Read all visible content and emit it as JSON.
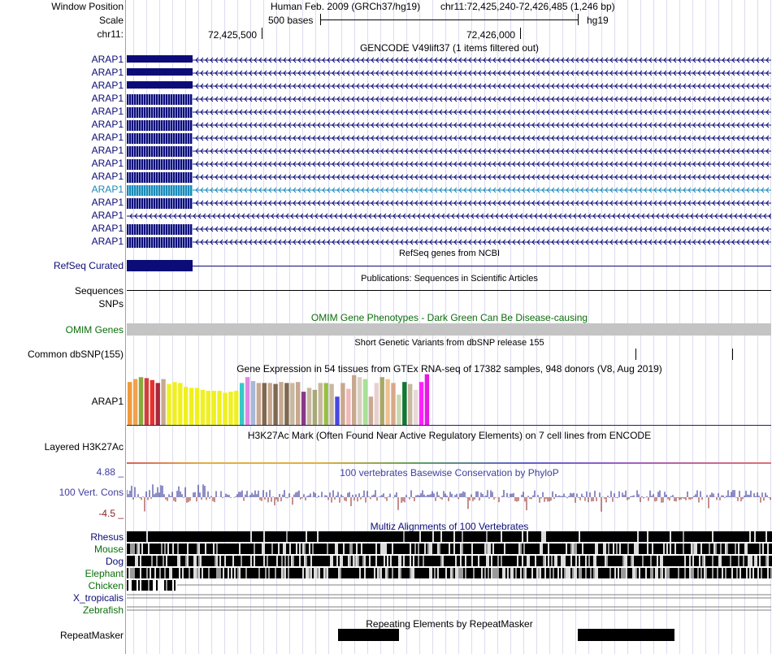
{
  "header": {
    "window_position_label": "Window Position",
    "assembly_text": "Human Feb. 2009 (GRCh37/hg19)",
    "position_text": "chr11:72,425,240-72,426,485 (1,246 bp)",
    "scale_label": "Scale",
    "scale_bar_text": "500 bases",
    "scale_db": "hg19",
    "chrom_label": "chr11:",
    "ruler_tick_1": "72,425,500",
    "ruler_tick_2": "72,426,000"
  },
  "tracks": {
    "gencode": {
      "title": "GENCODE V49lift37 (1 items filtered out)",
      "gene_label": "ARAP1",
      "colors": {
        "navy": "#0c0c78",
        "highlight": "#1a8ab8"
      }
    },
    "refseq": {
      "label": "RefSeq Curated",
      "title": "RefSeq genes from NCBI"
    },
    "sequences": {
      "label": "Sequences",
      "title": "Publications: Sequences in Scientific Articles"
    },
    "snps": {
      "label": "SNPs"
    },
    "omim": {
      "label": "OMIM Genes",
      "title": "OMIM Gene Phenotypes - Dark Green Can Be Disease-causing",
      "bar_color": "#c4c4c4"
    },
    "dbsnp": {
      "label": "Common dbSNP(155)",
      "title": "Short Genetic Variants from dbSNP release 155"
    },
    "gtex": {
      "label": "ARAP1",
      "title": "Gene Expression in 54 tissues from GTEx RNA-seq of 17382 samples, 948 donors (V8, Aug 2019)"
    },
    "h3k27ac": {
      "label": "Layered H3K27Ac",
      "title": "H3K27Ac Mark (Often Found Near Active Regulatory Elements) on 7 cell lines from ENCODE"
    },
    "phylop": {
      "label": "100 Vert. Cons",
      "max_label": "4.88 _",
      "min_label": "-4.5 _",
      "title": "100 vertebrates Basewise Conservation by PhyloP",
      "pos_color": "#1c1c8c",
      "neg_color": "#8c1c1c"
    },
    "multiz": {
      "title": "Multiz Alignments of 100 Vertebrates",
      "species": [
        "Rhesus",
        "Mouse",
        "Dog",
        "Elephant",
        "Chicken",
        "X_tropicalis",
        "Zebrafish"
      ]
    },
    "repeatmasker": {
      "label": "RepeatMasker",
      "title": "Repeating Elements by RepeatMasker"
    }
  },
  "chart_data": {
    "type": "bar",
    "title": "Gene Expression in 54 tissues from GTEx RNA-seq of 17382 samples, 948 donors (V8, Aug 2019)",
    "values": [
      44,
      47,
      49,
      48,
      46,
      43,
      47,
      42,
      44,
      43,
      39,
      38,
      38,
      36,
      35,
      35,
      35,
      33,
      34,
      35,
      43,
      49,
      45,
      43,
      43,
      43,
      42,
      44,
      43,
      43,
      44,
      34,
      38,
      36,
      43,
      43,
      42,
      29,
      43,
      37,
      51,
      49,
      47,
      29,
      43,
      49,
      47,
      43,
      31,
      44,
      42,
      36,
      44,
      52
    ],
    "colors": [
      "#f09a3c",
      "#f0a24e",
      "#88aa3c",
      "#d23c3c",
      "#e8302c",
      "#a8283c",
      "#c8a890",
      "#f0f020",
      "#f0f020",
      "#f0f020",
      "#f0f020",
      "#f0f020",
      "#f0f020",
      "#f0f020",
      "#f0f020",
      "#f0f020",
      "#f0f020",
      "#f0f020",
      "#f0f020",
      "#f0f020",
      "#38c8c8",
      "#e088e0",
      "#a8b8d8",
      "#c8a890",
      "#806850",
      "#c8a890",
      "#806850",
      "#c8a890",
      "#806850",
      "#c8b8a0",
      "#c8a890",
      "#883888",
      "#c8b8a0",
      "#a8a878",
      "#c8b8a0",
      "#98c040",
      "#c8b8a0",
      "#4848e0",
      "#c8a890",
      "#f0b8b8",
      "#c8a890",
      "#d8d0c0",
      "#a8e098",
      "#c8a890",
      "#e8d0d0",
      "#a8a868",
      "#f0c090",
      "#d8a888",
      "#c8d8b0",
      "#107830",
      "#c8b8a0",
      "#e8d8d8",
      "#ff20ff",
      "#e818e8"
    ]
  }
}
